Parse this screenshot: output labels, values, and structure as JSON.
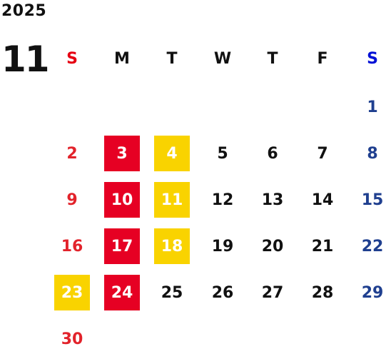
{
  "calendar": {
    "year": "2025",
    "month": "11",
    "weekdays": [
      "S",
      "M",
      "T",
      "W",
      "T",
      "F",
      "S"
    ],
    "weeks": [
      [
        "",
        "",
        "",
        "",
        "",
        "",
        "1"
      ],
      [
        "2",
        "3",
        "4",
        "5",
        "6",
        "7",
        "8"
      ],
      [
        "9",
        "10",
        "11",
        "12",
        "13",
        "14",
        "15"
      ],
      [
        "16",
        "17",
        "18",
        "19",
        "20",
        "21",
        "22"
      ],
      [
        "23",
        "24",
        "25",
        "26",
        "27",
        "28",
        "29"
      ],
      [
        "30",
        "",
        "",
        "",
        "",
        "",
        ""
      ]
    ],
    "highlight_red_days": [
      "3",
      "10",
      "17",
      "24"
    ],
    "highlight_yellow_days": [
      "4",
      "11",
      "18",
      "23"
    ],
    "colors": {
      "sunday": "#e2232b",
      "saturday": "#1f3f8f",
      "highlight_red": "#e60023",
      "highlight_yellow": "#f9d300",
      "weekday": "#111111"
    }
  }
}
